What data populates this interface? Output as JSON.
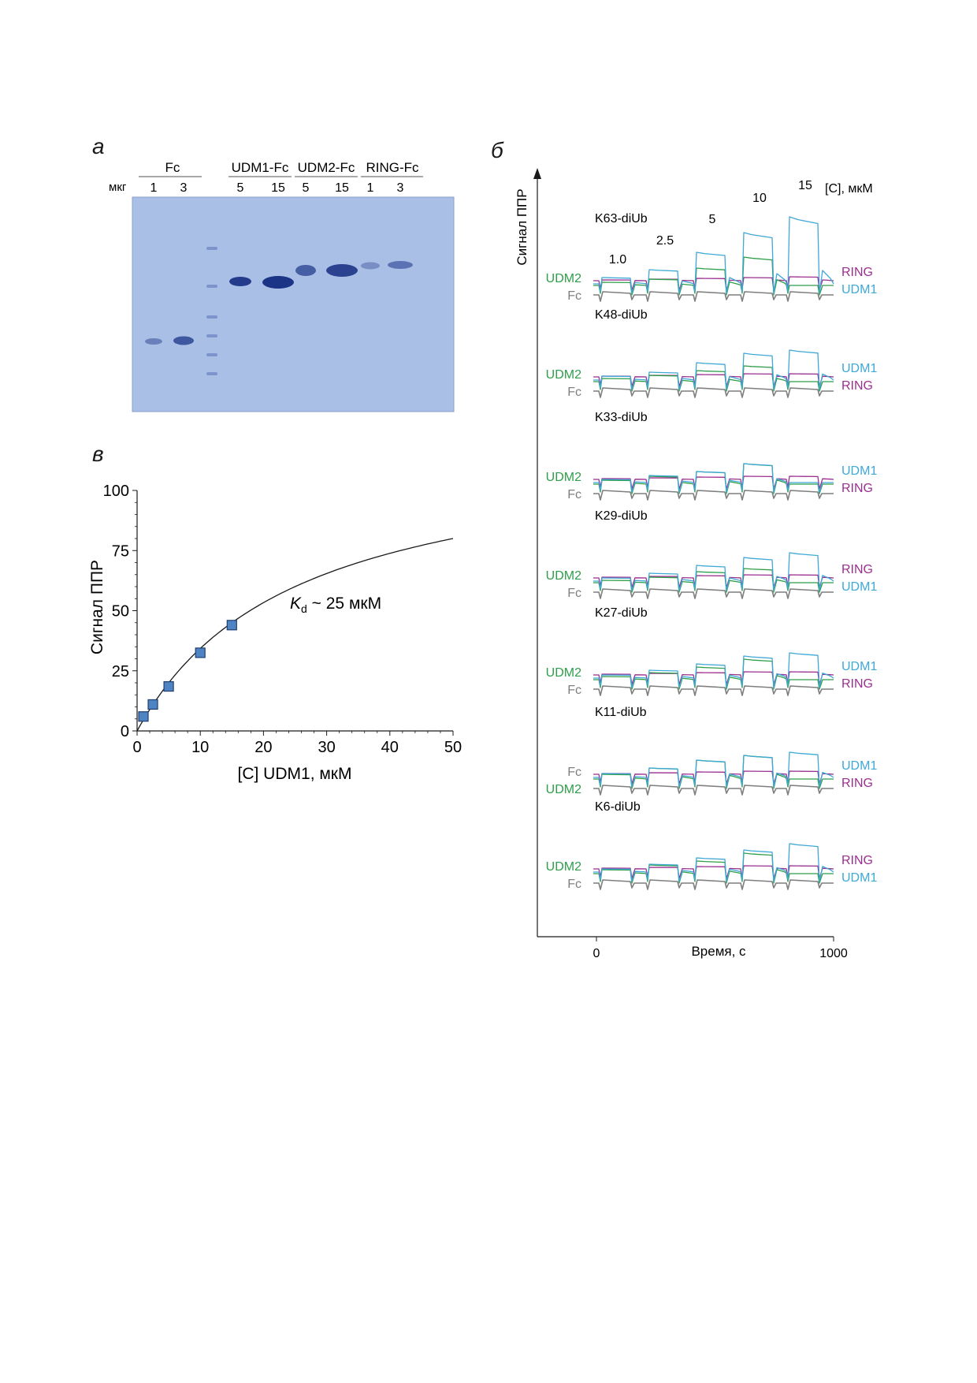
{
  "panels": {
    "a": "а",
    "b": "б",
    "c": "в"
  },
  "gel": {
    "unit_label": "мкг",
    "groups": [
      {
        "name": "Fc",
        "loads": [
          "1",
          "3"
        ]
      },
      {
        "name": "UDM1-Fc",
        "loads": [
          "5",
          "15"
        ]
      },
      {
        "name": "UDM2-Fc",
        "loads": [
          "5",
          "15"
        ]
      },
      {
        "name": "RING-Fc",
        "loads": [
          "1",
          "3"
        ]
      }
    ],
    "colors": {
      "background": "#a9bfe6",
      "band": "#1c3486",
      "ladder": "#7d93cc"
    }
  },
  "chart_data": [
    {
      "type": "scatter",
      "panel": "в",
      "xlabel": "[C] UDM1, мкМ",
      "ylabel": "Сигнал ППР",
      "xlim": [
        0,
        50
      ],
      "ylim": [
        0,
        100
      ],
      "xticks": [
        0,
        10,
        20,
        30,
        40,
        50
      ],
      "yticks": [
        0,
        25,
        50,
        75,
        100
      ],
      "points": [
        {
          "x": 1,
          "y": 6
        },
        {
          "x": 2.5,
          "y": 11
        },
        {
          "x": 5,
          "y": 18.5
        },
        {
          "x": 10,
          "y": 32.5
        },
        {
          "x": 15,
          "y": 44
        }
      ],
      "fit": {
        "kd": 25,
        "bmax": 120
      },
      "annotation": {
        "k": "K",
        "sub": "d",
        "rest": " ~ 25 мкМ"
      },
      "colors": {
        "marker": "#4f84c4",
        "marker_edge": "#1f3f6e",
        "fit": "#1a1a1a"
      }
    },
    {
      "type": "line",
      "panel": "б",
      "xlabel": "Время, с",
      "ylabel": "Сигнал ППР",
      "xticks": [
        "0",
        "1000"
      ],
      "conc_unit": "[C], мкМ",
      "concentrations": [
        "1.0",
        "2.5",
        "5",
        "10",
        "15"
      ],
      "colors": {
        "UDM1": "#3ea8d6",
        "UDM2": "#2e9e4a",
        "RING": "#9b2f8f",
        "Fc": "#7f7f7f"
      },
      "traces": [
        {
          "name": "K63-diUb",
          "responses": {
            "UDM1": [
              8,
              18,
              40,
              65,
              85
            ],
            "UDM2": [
              4,
              8,
              22,
              36,
              0
            ],
            "RING": [
              1,
              2,
              3,
              4,
              5
            ],
            "Fc": [
              0,
              0,
              0,
              0,
              0
            ]
          },
          "labels_left": [
            "UDM2",
            "Fc"
          ],
          "labels_right": [
            "RING",
            "UDM1"
          ]
        },
        {
          "name": "K48-diUb",
          "responses": {
            "UDM1": [
              5,
              10,
              22,
              34,
              38
            ],
            "UDM2": [
              4,
              8,
              14,
              20,
              0
            ],
            "RING": [
              1,
              2,
              3,
              4,
              4
            ],
            "Fc": [
              0,
              0,
              0,
              0,
              0
            ]
          },
          "labels_left": [
            "UDM2",
            "Fc"
          ],
          "labels_right": [
            "UDM1",
            "RING"
          ]
        },
        {
          "name": "K33-diUb",
          "responses": {
            "UDM1": [
              4,
              9,
              14,
              24,
              0
            ],
            "UDM2": [
              5,
              10,
              16,
              26,
              0
            ],
            "RING": [
              1,
              2,
              3,
              4,
              4
            ],
            "Fc": [
              0,
              0,
              0,
              0,
              0
            ]
          },
          "labels_left": [
            "UDM2",
            "Fc"
          ],
          "labels_right": [
            "UDM1",
            "RING"
          ]
        },
        {
          "name": "K29-diUb",
          "responses": {
            "UDM1": [
              4,
              10,
              20,
              30,
              36
            ],
            "UDM2": [
              3,
              7,
              14,
              18,
              0
            ],
            "RING": [
              1,
              2,
              3,
              4,
              4
            ],
            "Fc": [
              0,
              0,
              0,
              0,
              0
            ]
          },
          "labels_left": [
            "UDM2",
            "Fc"
          ],
          "labels_right": [
            "RING",
            "UDM1"
          ]
        },
        {
          "name": "K27-diUb",
          "responses": {
            "UDM1": [
              4,
              10,
              18,
              28,
              32
            ],
            "UDM2": [
              4,
              9,
              16,
              26,
              0
            ],
            "RING": [
              1,
              2,
              3,
              4,
              4
            ],
            "Fc": [
              0,
              0,
              0,
              0,
              0
            ]
          },
          "labels_left": [
            "UDM2",
            "Fc"
          ],
          "labels_right": [
            "UDM1",
            "RING"
          ]
        },
        {
          "name": "K11-diUb",
          "responses": {
            "UDM1": [
              5,
              12,
              22,
              28,
              32
            ],
            "UDM2": [
              6,
              14,
              24,
              30,
              0
            ],
            "RING": [
              1,
              2,
              3,
              4,
              4
            ],
            "Fc": [
              0,
              0,
              0,
              0,
              0
            ]
          },
          "labels_left": [
            "Fc",
            "UDM2"
          ],
          "labels_right": [
            "UDM1",
            "RING"
          ]
        },
        {
          "name": "K6-diUb",
          "responses": {
            "UDM1": [
              4,
              10,
              18,
              28,
              36
            ],
            "UDM2": [
              5,
              11,
              16,
              26,
              0
            ],
            "RING": [
              1,
              2,
              3,
              4,
              4
            ],
            "Fc": [
              0,
              0,
              0,
              0,
              0
            ]
          },
          "labels_left": [
            "UDM2",
            "Fc"
          ],
          "labels_right": [
            "RING",
            "UDM1"
          ]
        }
      ]
    }
  ]
}
